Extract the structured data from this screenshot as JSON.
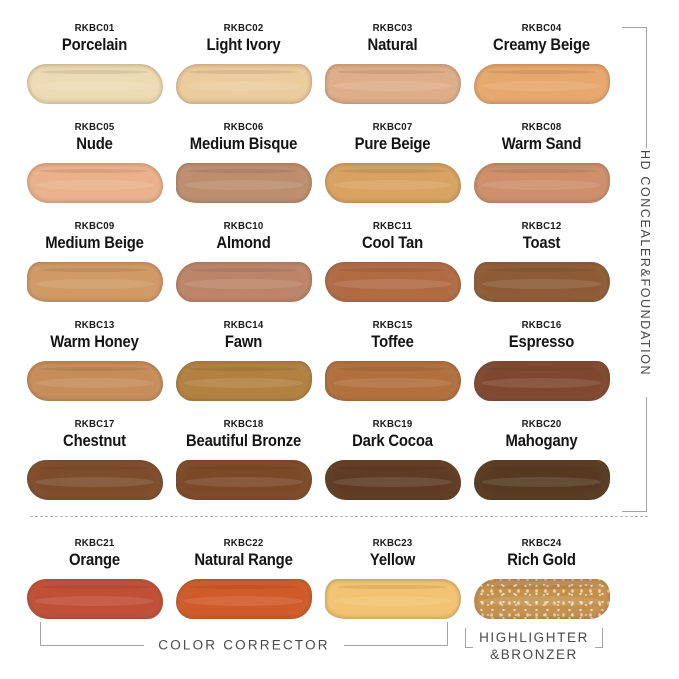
{
  "right_group": {
    "label": "HD CONCEALER&FOUNDATION"
  },
  "bottom_groups": {
    "color_corrector": "COLOR CORRECTOR",
    "highlighter_line1": "HIGHLIGHTER",
    "highlighter_line2": "&BRONZER"
  },
  "swatches": [
    {
      "code": "RKBC01",
      "name": "Porcelain",
      "color": "#eddbb3",
      "sparkle": false
    },
    {
      "code": "RKBC02",
      "name": "Light Ivory",
      "color": "#ebcc9c",
      "sparkle": false
    },
    {
      "code": "RKBC03",
      "name": "Natural",
      "color": "#deae8a",
      "sparkle": false
    },
    {
      "code": "RKBC04",
      "name": "Creamy Beige",
      "color": "#e7a86e",
      "sparkle": false
    },
    {
      "code": "RKBC05",
      "name": "Nude",
      "color": "#eab28c",
      "sparkle": false
    },
    {
      "code": "RKBC06",
      "name": "Medium Bisque",
      "color": "#bd8e6e",
      "sparkle": false
    },
    {
      "code": "RKBC07",
      "name": "Pure Beige",
      "color": "#d8a361",
      "sparkle": false
    },
    {
      "code": "RKBC08",
      "name": "Warm Sand",
      "color": "#ce8f6a",
      "sparkle": false
    },
    {
      "code": "RKBC09",
      "name": "Medium Beige",
      "color": "#d09a66",
      "sparkle": false
    },
    {
      "code": "RKBC10",
      "name": "Almond",
      "color": "#bc8569",
      "sparkle": false
    },
    {
      "code": "RKBC11",
      "name": "Cool Tan",
      "color": "#b06b44",
      "sparkle": false
    },
    {
      "code": "RKBC12",
      "name": "Toast",
      "color": "#8d5c36",
      "sparkle": false
    },
    {
      "code": "RKBC13",
      "name": "Warm Honey",
      "color": "#c78d59",
      "sparkle": false
    },
    {
      "code": "RKBC14",
      "name": "Fawn",
      "color": "#b28140",
      "sparkle": false
    },
    {
      "code": "RKBC15",
      "name": "Toffee",
      "color": "#b1703d",
      "sparkle": false
    },
    {
      "code": "RKBC16",
      "name": "Espresso",
      "color": "#7f4730",
      "sparkle": false
    },
    {
      "code": "RKBC17",
      "name": "Chestnut",
      "color": "#7d4c2b",
      "sparkle": false
    },
    {
      "code": "RKBC18",
      "name": "Beautiful Bronze",
      "color": "#7b4927",
      "sparkle": false
    },
    {
      "code": "RKBC19",
      "name": "Dark Cocoa",
      "color": "#5e3b22",
      "sparkle": false
    },
    {
      "code": "RKBC20",
      "name": "Mahogany",
      "color": "#553a20",
      "sparkle": false
    },
    {
      "code": "RKBC21",
      "name": "Orange",
      "color": "#c04f36",
      "sparkle": false
    },
    {
      "code": "RKBC22",
      "name": "Natural Range",
      "color": "#d05a28",
      "sparkle": false
    },
    {
      "code": "RKBC23",
      "name": "Yellow",
      "color": "#f2c371",
      "sparkle": false
    },
    {
      "code": "RKBC24",
      "name": "Rich Gold",
      "color": "#c3914f",
      "sparkle": true
    }
  ]
}
